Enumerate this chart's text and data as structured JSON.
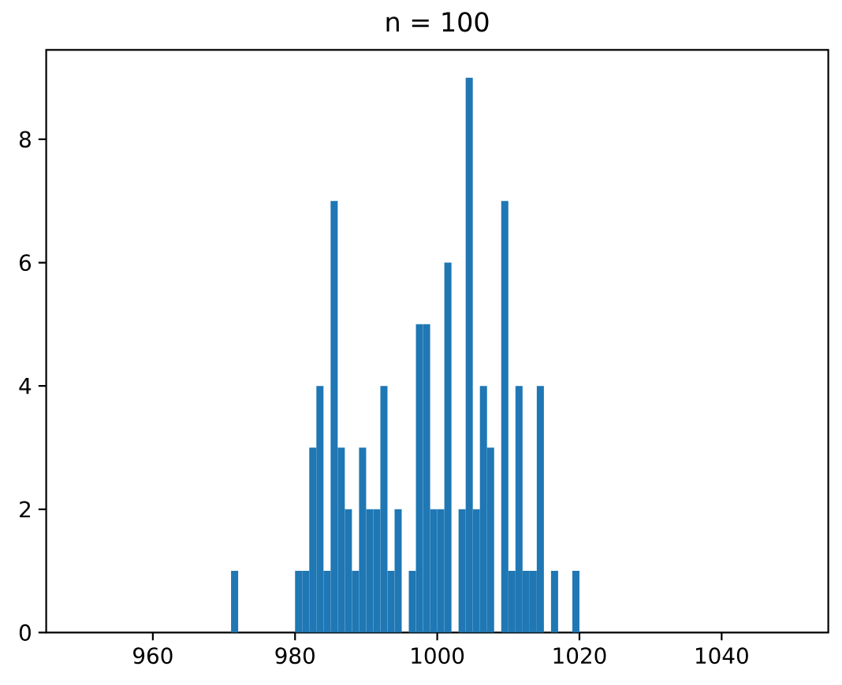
{
  "chart_data": {
    "type": "histogram",
    "title": "n = 100",
    "bins": [
      950,
      951,
      952,
      953,
      954,
      955,
      956,
      957,
      958,
      959,
      960,
      961,
      962,
      963,
      964,
      965,
      966,
      967,
      968,
      969,
      970,
      971,
      972,
      973,
      974,
      975,
      976,
      977,
      978,
      979,
      980,
      981,
      982,
      983,
      984,
      985,
      986,
      987,
      988,
      989,
      990,
      991,
      992,
      993,
      994,
      995,
      996,
      997,
      998,
      999,
      1000,
      1001,
      1002,
      1003,
      1004,
      1005,
      1006,
      1007,
      1008,
      1009,
      1010,
      1011,
      1012,
      1013,
      1014,
      1015,
      1016,
      1017,
      1018,
      1019,
      1020,
      1021,
      1022,
      1023,
      1024,
      1025,
      1026,
      1027,
      1028,
      1029,
      1030,
      1031,
      1032,
      1033,
      1034,
      1035,
      1036,
      1037,
      1038,
      1039,
      1040,
      1041,
      1042,
      1043,
      1044,
      1045,
      1046,
      1047,
      1048,
      1049,
      1050
    ],
    "values": [
      0,
      0,
      0,
      0,
      0,
      0,
      0,
      0,
      0,
      0,
      0,
      0,
      0,
      0,
      0,
      0,
      0,
      0,
      0,
      0,
      0,
      1,
      0,
      0,
      0,
      0,
      0,
      0,
      0,
      0,
      1,
      1,
      3,
      4,
      1,
      7,
      3,
      2,
      1,
      3,
      2,
      2,
      4,
      1,
      2,
      0,
      1,
      5,
      5,
      2,
      2,
      6,
      0,
      2,
      9,
      2,
      4,
      3,
      0,
      7,
      1,
      4,
      1,
      1,
      4,
      0,
      1,
      0,
      0,
      1,
      0,
      0,
      0,
      0,
      0,
      0,
      0,
      0,
      0,
      0,
      0,
      0,
      0,
      0,
      0,
      0,
      0,
      0,
      0,
      0,
      0,
      0,
      0,
      0,
      0,
      0,
      0,
      0,
      0,
      0
    ],
    "color": "#1f77b4",
    "xlim": [
      945,
      1055
    ],
    "xticks": [
      960,
      980,
      1000,
      1020,
      1040
    ],
    "ylim": [
      0,
      9.45
    ],
    "yticks": [
      0,
      2,
      4,
      6,
      8
    ]
  }
}
